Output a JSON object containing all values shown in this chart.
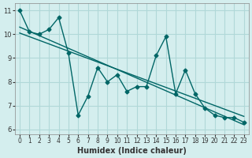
{
  "title": "",
  "xlabel": "Humidex (Indice chaleur)",
  "ylabel": "",
  "background_color": "#d4eeee",
  "grid_color": "#b0d8d8",
  "line_color": "#006666",
  "xlim": [
    -0.5,
    23.5
  ],
  "ylim": [
    5.8,
    11.3
  ],
  "yticks": [
    6,
    7,
    8,
    9,
    10,
    11
  ],
  "xticks": [
    0,
    1,
    2,
    3,
    4,
    5,
    6,
    7,
    8,
    9,
    10,
    11,
    12,
    13,
    14,
    15,
    16,
    17,
    18,
    19,
    20,
    21,
    22,
    23
  ],
  "data_x": [
    0,
    1,
    2,
    3,
    4,
    5,
    6,
    7,
    8,
    9,
    10,
    11,
    12,
    13,
    14,
    15,
    16,
    17,
    18,
    19,
    20,
    21,
    22,
    23
  ],
  "data_y": [
    11.0,
    10.1,
    10.0,
    10.2,
    10.7,
    9.2,
    6.6,
    7.4,
    8.6,
    8.0,
    8.3,
    7.6,
    7.8,
    7.8,
    9.1,
    9.9,
    7.5,
    8.5,
    7.5,
    6.9,
    6.6,
    6.5,
    6.5,
    6.3
  ],
  "trend1_x": [
    0,
    23
  ],
  "trend1_y": [
    10.3,
    6.2
  ],
  "trend2_x": [
    0,
    23
  ],
  "trend2_y": [
    10.05,
    6.55
  ],
  "figsize": [
    3.2,
    2.0
  ],
  "dpi": 100
}
